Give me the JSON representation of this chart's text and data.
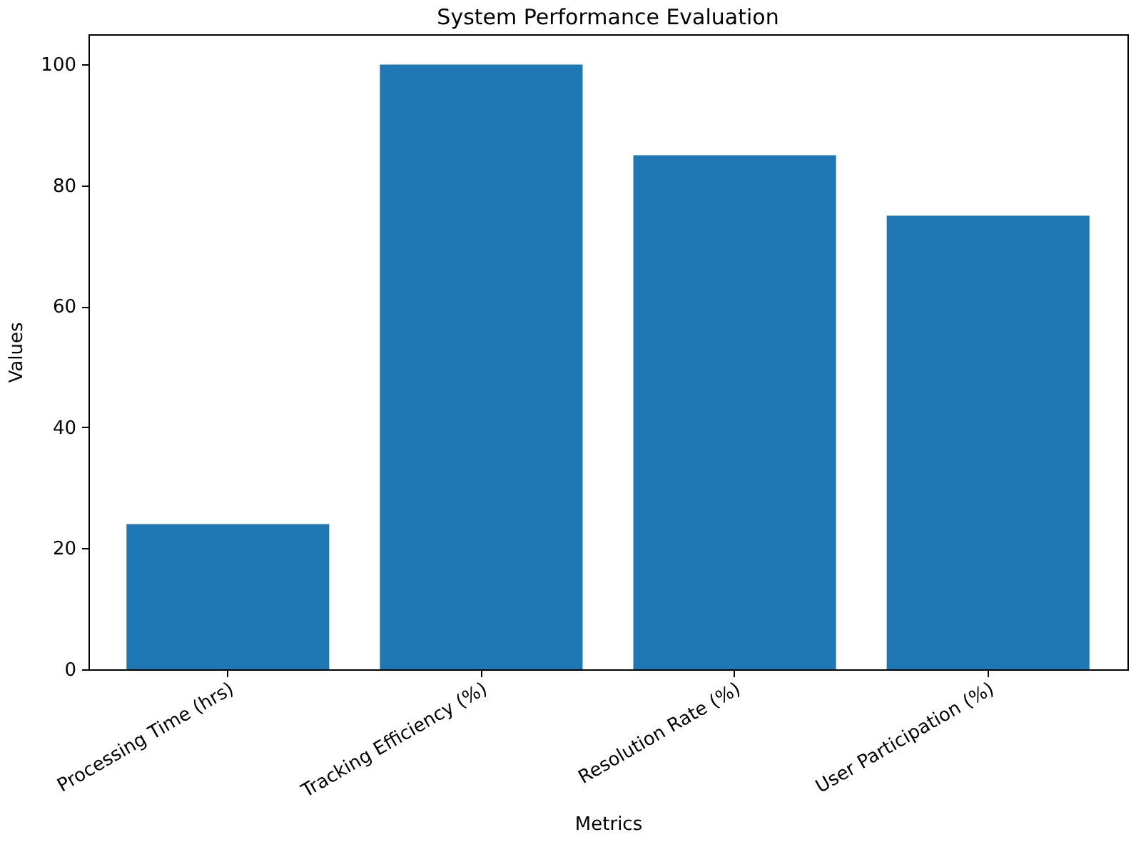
{
  "chart_data": {
    "type": "bar",
    "title": "System Performance Evaluation",
    "xlabel": "Metrics",
    "ylabel": "Values",
    "categories": [
      "Processing Time (hrs)",
      "Tracking Efficiency (%)",
      "Resolution Rate (%)",
      "User Participation (%)"
    ],
    "values": [
      24,
      100,
      85,
      75
    ],
    "color": "#1f77b4",
    "ylim": [
      0,
      105
    ],
    "yticks": [
      0,
      20,
      40,
      60,
      80,
      100
    ],
    "grid": false
  }
}
